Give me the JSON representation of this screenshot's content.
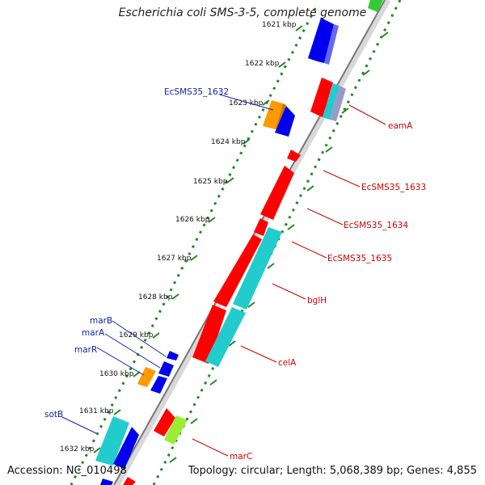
{
  "header": {
    "title": "Escherichia coli SMS-3-5, complete genome"
  },
  "footer": {
    "accession": "Accession: NC_010498",
    "stats": "Topology: circular; Length: 5,068,389 bp; Genes: 4,855"
  },
  "scale": {
    "ticks": [
      "1621 kbp",
      "1622 kbp",
      "1623 kbp",
      "1624 kbp",
      "1625 kbp",
      "1626 kbp",
      "1627 kbp",
      "1628 kbp",
      "1629 kbp",
      "1630 kbp",
      "1631 kbp",
      "1632 kbp"
    ]
  },
  "labels": {
    "right": [
      "eamA",
      "EcSMS35_1633",
      "EcSMS35_1634",
      "EcSMS35_1635",
      "bglH",
      "celA",
      "marC"
    ],
    "left": [
      "EcSMS35_1632",
      "marB",
      "marA",
      "marR",
      "sotB"
    ]
  },
  "colors": {
    "forward": "#ff0000",
    "reverse_blue": "#0000ee",
    "cyan": "#22cccc",
    "orange": "#ff9900",
    "green": "#99ee33",
    "label_red": "#cc0000",
    "label_blue": "#1122aa",
    "backbone": "#888888",
    "dotted_track": "#228822"
  }
}
